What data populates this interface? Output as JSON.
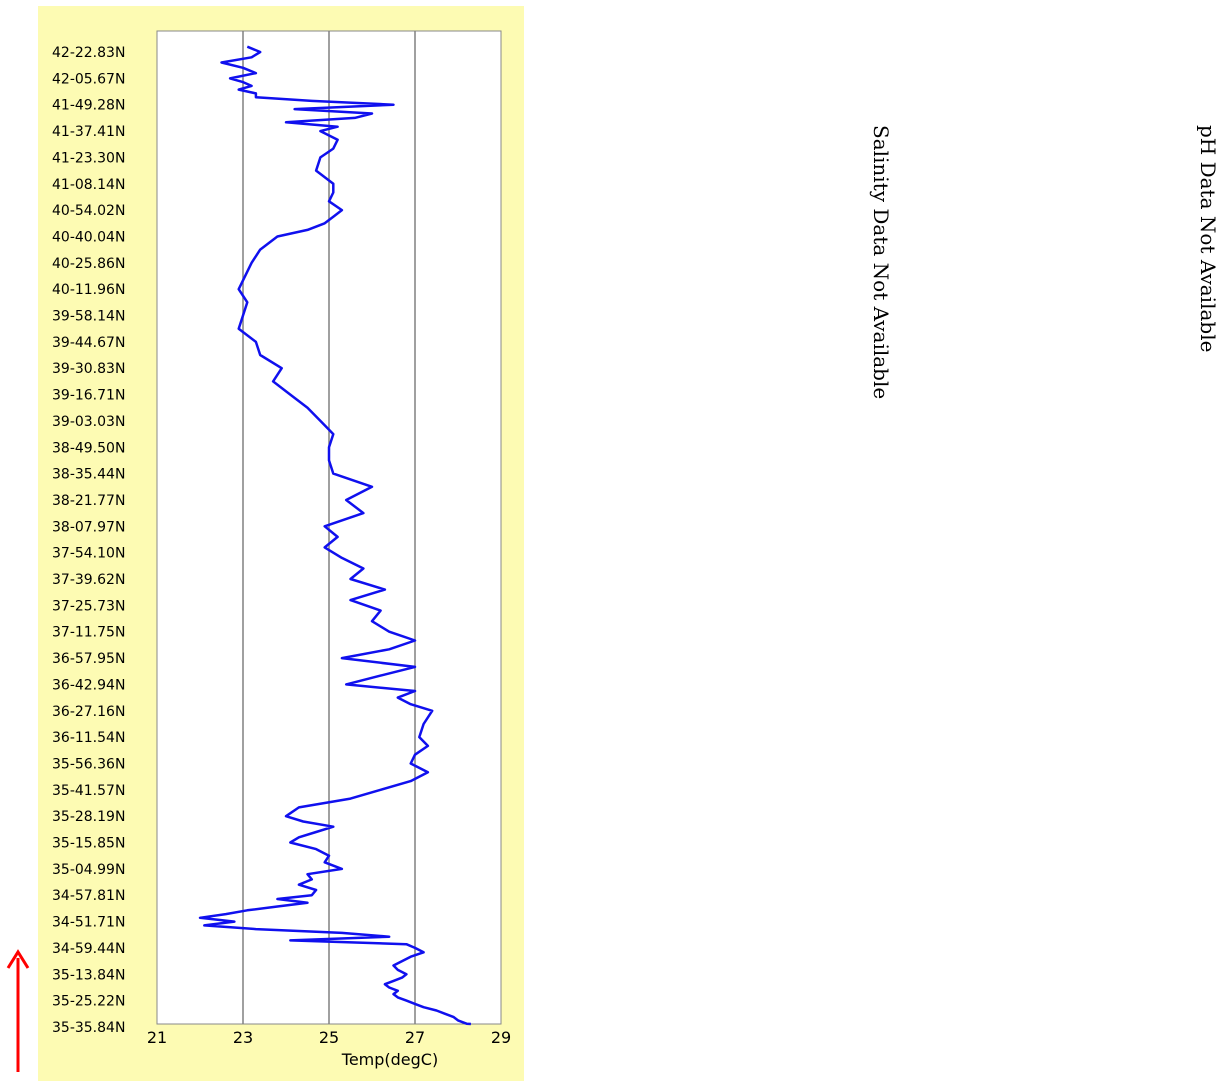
{
  "chart_data": {
    "type": "line",
    "xlabel": "Temp(degC)",
    "xlim": [
      21,
      29
    ],
    "xticks": [
      21,
      23,
      25,
      27,
      29
    ],
    "grid": "vertical",
    "line_color": "#1010ee",
    "panel_color": "#fdfbb3",
    "y_tick_labels": [
      "42-22.83N",
      "42-05.67N",
      "41-49.28N",
      "41-37.41N",
      "41-23.30N",
      "41-08.14N",
      "40-54.02N",
      "40-40.04N",
      "40-25.86N",
      "40-11.96N",
      "39-58.14N",
      "39-44.67N",
      "39-30.83N",
      "39-16.71N",
      "39-03.03N",
      "38-49.50N",
      "38-35.44N",
      "38-21.77N",
      "38-07.97N",
      "37-54.10N",
      "37-39.62N",
      "37-25.73N",
      "37-11.75N",
      "36-57.95N",
      "36-42.94N",
      "36-27.16N",
      "36-11.54N",
      "35-56.36N",
      "35-41.57N",
      "35-28.19N",
      "35-15.85N",
      "35-04.99N",
      "34-57.81N",
      "34-51.71N",
      "34-59.44N",
      "35-13.84N",
      "35-25.22N",
      "35-35.84N"
    ],
    "series": [
      {
        "values_note_free": true,
        "x": [
          28.3,
          28.2,
          28.0,
          27.9,
          27.7,
          27.5,
          27.2,
          27.0,
          26.8,
          26.6,
          26.5,
          26.6,
          26.4,
          26.3,
          26.5,
          26.7,
          26.8,
          26.6,
          26.5,
          26.7,
          26.9,
          27.2,
          27.0,
          26.8,
          24.1,
          26.4,
          25.3,
          23.3,
          22.1,
          22.8,
          22.0,
          22.6,
          23.1,
          23.8,
          24.5,
          23.8,
          24.6,
          24.7,
          24.3,
          24.6,
          24.5,
          25.3,
          24.9,
          25.0,
          24.7,
          24.1,
          24.3,
          24.7,
          25.1,
          24.4,
          24.0,
          24.3,
          25.5,
          26.2,
          26.9,
          27.3,
          26.9,
          27.0,
          27.3,
          27.1,
          27.2,
          27.4,
          26.9,
          26.6,
          27.0,
          25.4,
          26.2,
          27.0,
          25.3,
          26.4,
          27.0,
          26.4,
          26.0,
          26.2,
          25.5,
          26.3,
          25.5,
          25.8,
          25.3,
          24.9,
          25.2,
          24.9,
          25.8,
          25.4,
          26.0,
          25.1,
          25.0,
          25.0,
          25.1,
          24.8,
          24.5,
          24.1,
          23.7,
          23.9,
          23.4,
          23.3,
          22.9,
          23.0,
          23.1,
          22.9,
          23.2,
          23.4,
          23.8,
          24.5,
          24.9,
          25.1,
          25.3,
          25.0,
          25.1,
          25.1,
          24.7,
          24.8,
          25.1,
          25.2,
          24.8,
          25.2,
          24.0,
          25.6,
          26.0,
          24.2,
          26.5,
          24.6,
          23.3,
          23.3,
          22.9,
          23.2,
          23.0,
          22.7,
          23.3,
          23.0,
          22.5,
          23.2,
          23.4,
          23.1
        ],
        "y": [
          "35-35.84N",
          "35-35.0N",
          "35-34.0N",
          "35-32.5N",
          "35-31.0N",
          "35-29.0N",
          "35-27.5N",
          "35-26.0N",
          "35-25.22N",
          "35-24.0N",
          "35-22.0N",
          "35-20.0N",
          "35-18.5N",
          "35-17.0N",
          "35-15.5N",
          "35-14.5N",
          "35-13.84N",
          "35-12.0N",
          "35-10.0N",
          "35-07.0N",
          "35-04.0N",
          "35-01.0N",
          "34-59.44N",
          "34-57.5N",
          "34-56.0N",
          "34-54.0N",
          "34-53.0N",
          "34-52.5N",
          "34-52.0N",
          "34-51.71N",
          "34-51.9N",
          "34-53.0N",
          "34-54.0N",
          "34-55.0N",
          "34-56.0N",
          "34-57.0N",
          "34-57.81N",
          "34-58.5N",
          "34-59.0N",
          "34-59.5N",
          "35-00.5N",
          "35-04.99N",
          "35-07.0N",
          "35-10.0N",
          "35-13.0N",
          "35-15.85N",
          "35-18.0N",
          "35-21.0N",
          "35-24.0N",
          "35-26.0N",
          "35-28.19N",
          "35-30.5N",
          "35-37.0N",
          "35-41.57N",
          "35-46.0N",
          "35-52.0N",
          "35-56.36N",
          "36-02.0N",
          "36-07.0N",
          "36-11.54N",
          "36-16.0N",
          "36-27.16N",
          "36-29.0N",
          "36-33.0N",
          "36-36.0N",
          "36-42.94N",
          "36-48.0N",
          "36-51.0N",
          "36-57.95N",
          "37-01.0N",
          "37-05.0N",
          "37-11.75N",
          "37-15.0N",
          "37-21.0N",
          "37-28.0N",
          "37-39.0N",
          "37-42.0N",
          "37-46.0N",
          "37-51.0N",
          "37-58.0N",
          "38-03.0N",
          "38-07.97N",
          "38-14.0N",
          "38-21.77N",
          "38-28.0N",
          "38-35.44N",
          "38-42.0N",
          "38-49.50N",
          "38-56.0N",
          "39-03.03N",
          "39-10.0N",
          "39-16.71N",
          "39-22.0N",
          "39-30.83N",
          "39-38.0N",
          "39-44.67N",
          "39-50.0N",
          "39-58.14N",
          "40-05.0N",
          "40-11.96N",
          "40-25.86N",
          "40-33.0N",
          "40-40.04N",
          "40-44.0N",
          "40-47.0N",
          "40-51.0N",
          "40-54.02N",
          "40-58.0N",
          "41-02.0N",
          "41-08.14N",
          "41-14.0N",
          "41-23.30N",
          "41-29.0N",
          "41-34.0N",
          "41-37.41N",
          "41-40.0N",
          "41-43.0N",
          "41-44.0N",
          "41-46.0N",
          "41-48.0N",
          "41-49.28N",
          "41-50.5N",
          "41-52.0N",
          "41-55.0N",
          "41-57.0N",
          "42-00.0N",
          "42-02.0N",
          "42-05.67N",
          "42-09.0N",
          "42-12.0N",
          "42-15.0N",
          "42-19.0N",
          "42-22.83N",
          "42-26.0N"
        ]
      }
    ]
  },
  "side_texts": {
    "salinity": "Salinity Data Not Available",
    "ph": "pH Data Not Available"
  }
}
